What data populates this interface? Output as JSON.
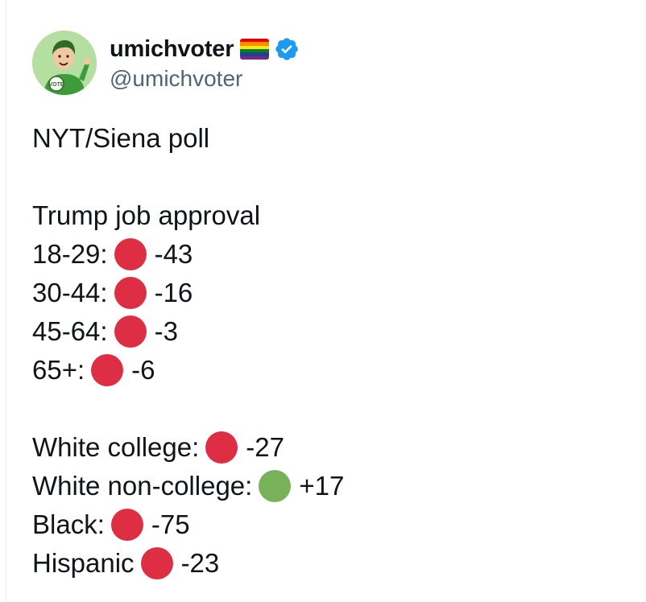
{
  "tweet": {
    "author": {
      "display_name": "umichvoter",
      "handle": "@umichvoter",
      "flag_icon": "rainbow-flag-icon",
      "verified_icon": "verified-badge-icon",
      "avatar_badge_text": "VOTE"
    },
    "title": "NYT/Siena poll",
    "section_title": "Trump job approval",
    "age_rows": [
      {
        "label": "18-29:",
        "value": "-43",
        "dot": "red"
      },
      {
        "label": "30-44:",
        "value": "-16",
        "dot": "red"
      },
      {
        "label": "45-64:",
        "value": "-3",
        "dot": "red"
      },
      {
        "label": "65+:",
        "value": "-6",
        "dot": "red"
      }
    ],
    "group_rows": [
      {
        "label": "White college:",
        "value": "-27",
        "dot": "red"
      },
      {
        "label": "White non-college:",
        "value": "+17",
        "dot": "green"
      },
      {
        "label": "Black:",
        "value": "-75",
        "dot": "red"
      },
      {
        "label": "Hispanic",
        "value": "-23",
        "dot": "red"
      }
    ]
  },
  "colors": {
    "text": "#0f1419",
    "handle": "#536471",
    "red_dot": "#dd2e44",
    "green_dot": "#78b159",
    "verified": "#1d9bf0",
    "avatar_bg": "#b5dea1"
  }
}
